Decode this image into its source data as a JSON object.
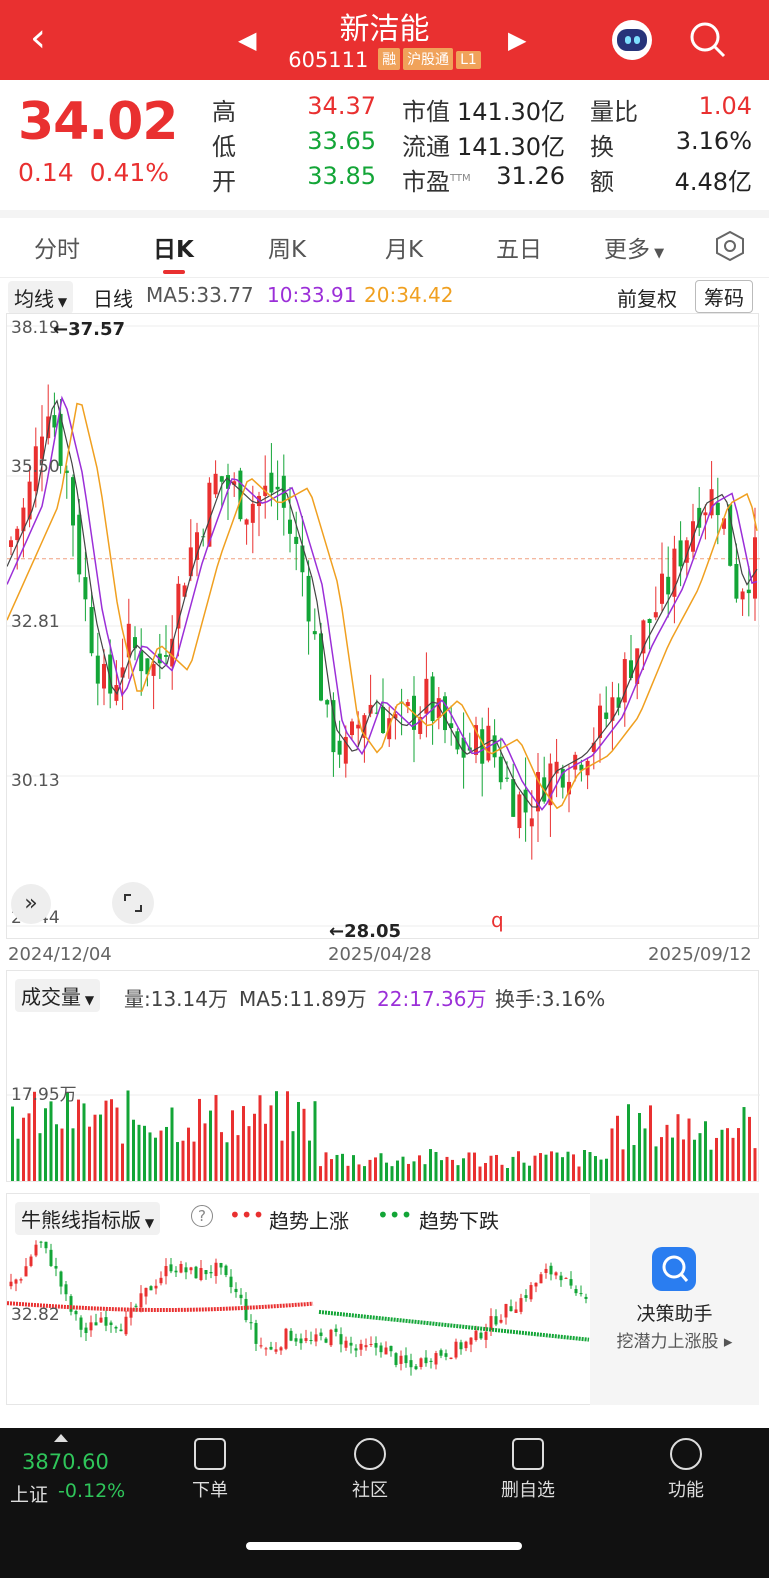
{
  "header": {
    "title": "新洁能",
    "code": "605111",
    "tags": [
      "融",
      "沪股通",
      "L1"
    ]
  },
  "quote": {
    "price": "34.02",
    "change": "0.14",
    "change_pct": "0.41%",
    "rows": [
      {
        "l1": "高",
        "v1": "34.37",
        "l2": "市值",
        "v2": "141.30亿",
        "l3": "量比",
        "v3": "1.04"
      },
      {
        "l1": "低",
        "v1": "33.65",
        "l2": "流通",
        "v2": "141.30亿",
        "l3": "换",
        "v3": "3.16%"
      },
      {
        "l1": "开",
        "v1": "33.85",
        "l2": "市盈",
        "v2": "31.26",
        "l3": "额",
        "v3": "4.48亿"
      }
    ],
    "ttm": "TTM"
  },
  "tabs": [
    "分时",
    "日K",
    "周K",
    "月K",
    "五日",
    "更多"
  ],
  "ma": {
    "selector": "均线",
    "period": "日线",
    "ma5": "MA5:33.77",
    "ma10": "10:33.91",
    "ma20": "20:34.42",
    "adjust": "前复权",
    "chips": "筹码"
  },
  "kline": {
    "y_labels": [
      "38.19",
      "35.50",
      "32.81",
      "30.13",
      "27.44"
    ],
    "high_mark": "←37.57",
    "low_mark": "←28.05",
    "dates": [
      "2024/12/04",
      "2025/04/28",
      "2025/09/12"
    ],
    "q_mark": "q"
  },
  "volume": {
    "selector": "成交量",
    "vol": "量:13.14万",
    "ma5": "MA5:11.89万",
    "ma22": "22:17.36万",
    "turnover": "换手:3.16%",
    "y_label": "17.95万"
  },
  "indicator": {
    "selector": "牛熊线指标版",
    "help": "?",
    "up_label": "趋势上涨",
    "down_label": "趋势下跌",
    "y_label": "32.82"
  },
  "assistant": {
    "title": "决策助手",
    "subtitle": "挖潜力上涨股"
  },
  "market": {
    "index": "3870.60",
    "name": "上证",
    "change": "-0.12%"
  },
  "nav": [
    "下单",
    "社区",
    "删自选",
    "功能"
  ],
  "colors": {
    "brand": "#e93030",
    "up": "#e93030",
    "down": "#13a537",
    "ma5": "#444444",
    "ma10": "#9b2fd8",
    "ma20": "#f0a020"
  }
}
